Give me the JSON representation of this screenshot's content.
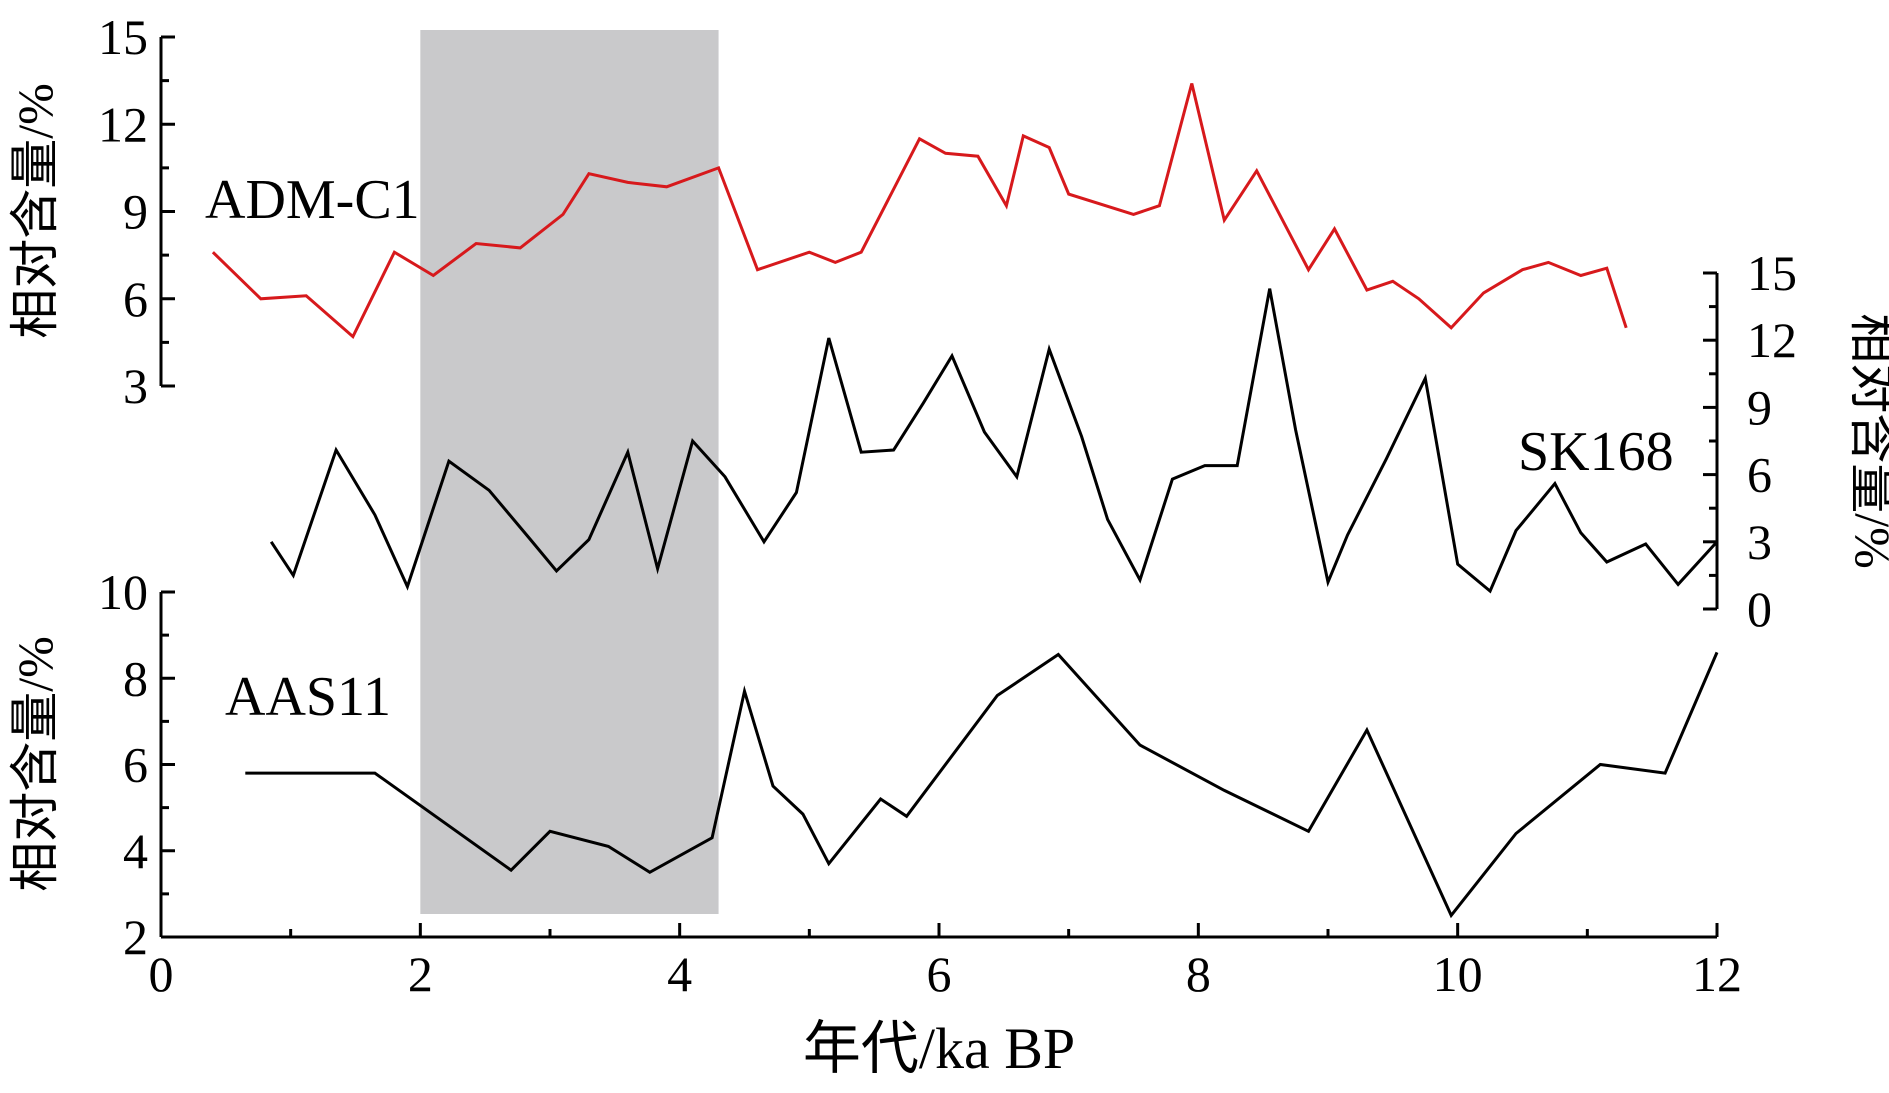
{
  "chart_data": {
    "type": "line",
    "xlabel": "年代/ka BP",
    "xlim": [
      0,
      12
    ],
    "x_ticks": [
      0,
      2,
      4,
      6,
      8,
      10,
      12
    ],
    "shaded_region": {
      "x_start": 2.0,
      "x_end": 4.3,
      "color": "#c9c9cb"
    },
    "panels": [
      {
        "series_name": "ADM-C1",
        "color": "#d7191c",
        "ylabel": "相对含量/%",
        "ylim": [
          3,
          15
        ],
        "y_ticks": [
          3,
          6,
          9,
          12,
          15
        ],
        "axis_side": "left",
        "x": [
          0.4,
          0.77,
          1.12,
          1.48,
          1.8,
          2.1,
          2.43,
          2.77,
          3.1,
          3.3,
          3.6,
          3.9,
          4.3,
          4.6,
          5.0,
          5.2,
          5.4,
          5.85,
          6.05,
          6.3,
          6.52,
          6.65,
          6.85,
          7.0,
          7.5,
          7.7,
          7.95,
          8.2,
          8.45,
          8.85,
          9.05,
          9.3,
          9.5,
          9.7,
          9.95,
          10.2,
          10.5,
          10.7,
          10.95,
          11.15,
          11.3
        ],
        "y": [
          7.6,
          6.0,
          6.1,
          4.7,
          7.6,
          6.8,
          7.9,
          7.75,
          8.9,
          10.3,
          10.0,
          9.85,
          10.5,
          7.0,
          7.6,
          7.25,
          7.6,
          11.5,
          11.0,
          10.9,
          9.2,
          11.6,
          11.2,
          9.6,
          8.9,
          9.2,
          13.4,
          8.7,
          10.4,
          7.0,
          8.4,
          6.3,
          6.6,
          6.0,
          5.0,
          6.2,
          7.0,
          7.25,
          6.8,
          7.05,
          5.0
        ]
      },
      {
        "series_name": "SK168",
        "color": "#000000",
        "ylabel": "相对含量/%",
        "ylim": [
          0,
          15
        ],
        "y_ticks": [
          0,
          3,
          6,
          9,
          12,
          15
        ],
        "axis_side": "right",
        "x": [
          0.85,
          1.02,
          1.35,
          1.65,
          1.9,
          2.22,
          2.53,
          2.85,
          3.05,
          3.3,
          3.6,
          3.83,
          4.1,
          4.35,
          4.65,
          4.9,
          5.15,
          5.4,
          5.65,
          5.88,
          6.1,
          6.35,
          6.6,
          6.85,
          7.1,
          7.3,
          7.55,
          7.8,
          8.05,
          8.3,
          8.55,
          8.75,
          9.0,
          9.15,
          9.45,
          9.75,
          10.0,
          10.25,
          10.45,
          10.75,
          10.95,
          11.15,
          11.45,
          11.7,
          12.0
        ],
        "y": [
          3.0,
          1.5,
          7.1,
          4.2,
          1.0,
          6.6,
          5.3,
          3.1,
          1.7,
          3.1,
          7.0,
          1.8,
          7.5,
          5.9,
          3.0,
          5.2,
          12.1,
          7.0,
          7.1,
          9.2,
          11.3,
          7.9,
          5.9,
          11.6,
          7.7,
          4.0,
          1.3,
          5.8,
          6.4,
          6.4,
          14.3,
          8.0,
          1.2,
          3.3,
          6.7,
          10.3,
          2.0,
          0.8,
          3.5,
          5.6,
          3.4,
          2.1,
          2.9,
          1.1,
          3.0
        ]
      },
      {
        "series_name": "AAS11",
        "color": "#000000",
        "ylabel": "相对含量/%",
        "ylim": [
          2,
          10
        ],
        "y_ticks": [
          2,
          4,
          6,
          8,
          10
        ],
        "axis_side": "left",
        "x": [
          0.65,
          1.1,
          1.65,
          2.7,
          3.0,
          3.45,
          3.77,
          4.25,
          4.5,
          4.72,
          4.95,
          5.15,
          5.55,
          5.75,
          6.45,
          6.92,
          7.55,
          8.2,
          8.85,
          9.3,
          9.95,
          10.45,
          11.1,
          11.6,
          12.0
        ],
        "y": [
          5.8,
          5.8,
          5.8,
          3.55,
          4.45,
          4.1,
          3.5,
          4.3,
          7.7,
          5.5,
          4.85,
          3.7,
          5.2,
          4.8,
          7.6,
          8.55,
          6.45,
          5.4,
          4.45,
          6.8,
          2.5,
          4.4,
          6.0,
          5.8,
          8.6
        ]
      }
    ]
  }
}
